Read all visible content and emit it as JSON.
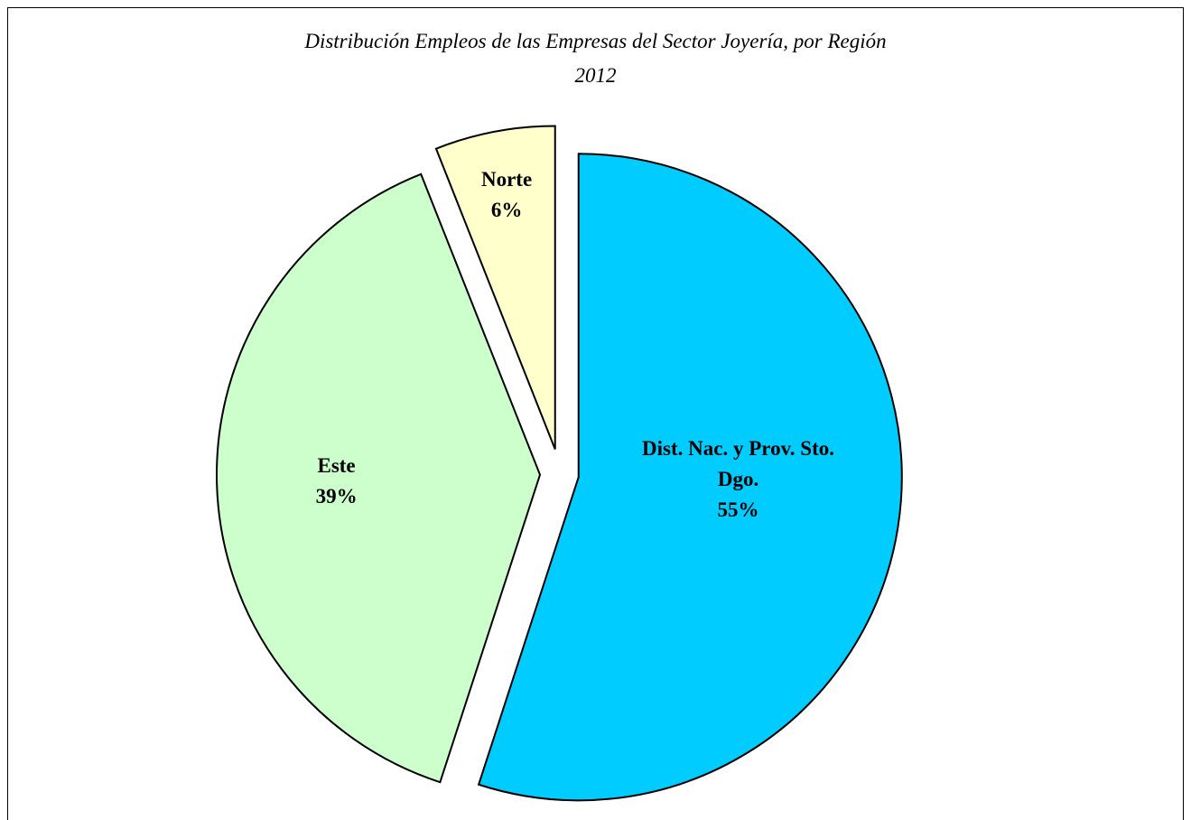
{
  "chart_data": {
    "type": "pie",
    "title": "Distribución Empleos de las Empresas del Sector Joyería, por Región",
    "subtitle": "2012",
    "categories": [
      "Dist. Nac. y Prov. Sto. Dgo.",
      "Este",
      "Norte"
    ],
    "values": [
      55,
      39,
      6
    ],
    "value_labels": [
      "55%",
      "39%",
      "6%"
    ],
    "colors": [
      "#00ccff",
      "#ccffcc",
      "#ffffcc"
    ]
  }
}
